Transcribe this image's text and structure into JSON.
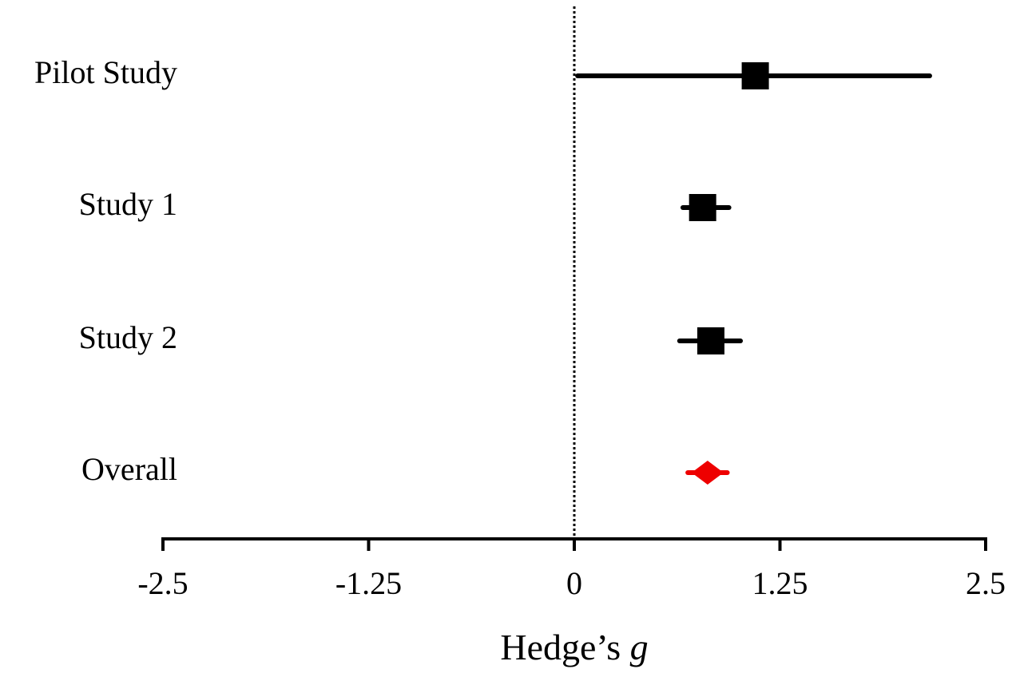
{
  "chart_data": {
    "type": "forest",
    "xlabel": "Hedge’s g",
    "categories": [
      "Pilot Study",
      "Study 1",
      "Study 2",
      "Overall"
    ],
    "values": [
      1.1,
      0.78,
      0.83,
      0.81
    ],
    "ci_low": [
      0.02,
      0.66,
      0.64,
      0.69
    ],
    "ci_high": [
      2.16,
      0.94,
      1.01,
      0.93
    ],
    "colors": [
      "#000000",
      "#000000",
      "#000000",
      "#ee0000"
    ],
    "markers": [
      "square",
      "square",
      "square",
      "diamond"
    ],
    "xlim": [
      -2.5,
      2.5
    ],
    "xticks": [
      -2.5,
      -1.25,
      0,
      1.25,
      2.5
    ],
    "reference_line": 0
  }
}
